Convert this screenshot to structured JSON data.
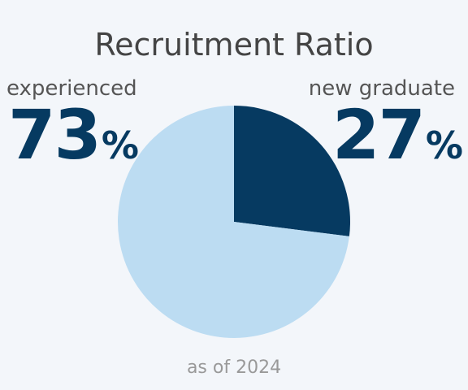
{
  "chart_data": {
    "type": "pie",
    "title": "Recruitment Ratio",
    "slices": [
      {
        "label": "new graduate",
        "value": 27,
        "unit": "%",
        "color": "#063a61"
      },
      {
        "label": "experienced",
        "value": 73,
        "unit": "%",
        "color": "#bcdcf2"
      }
    ],
    "footnote": "as of 2024"
  },
  "colors": {
    "background": "#f3f6fa",
    "accent": "#063a61",
    "light": "#bcdcf2"
  }
}
